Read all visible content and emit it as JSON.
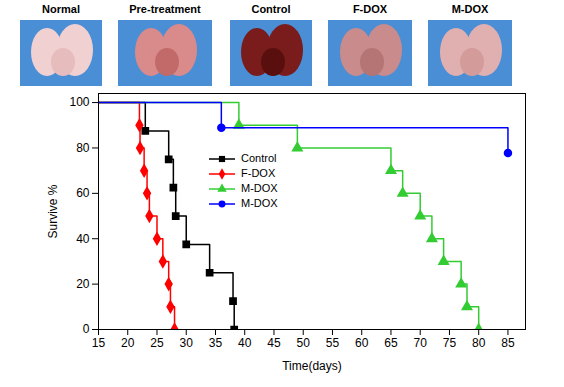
{
  "photos": [
    "Normal",
    "Pre-treatment",
    "Control",
    "F-DOX",
    "M-DOX"
  ],
  "chart_data": {
    "type": "line",
    "x_label": "Time(days)",
    "y_label": "Survive %",
    "xlim": [
      15,
      88
    ],
    "ylim": [
      0,
      104
    ],
    "xticks": [
      15,
      20,
      25,
      30,
      35,
      40,
      45,
      50,
      55,
      60,
      65,
      70,
      75,
      80,
      85
    ],
    "yticks": [
      0,
      20,
      40,
      60,
      80,
      100
    ],
    "legend": "top",
    "series": [
      {
        "name": "Control",
        "color": "#000000",
        "marker": "square",
        "line_style": "step",
        "x": [
          15,
          23,
          27,
          27.8,
          28.2,
          30,
          34,
          38,
          38.2
        ],
        "values": [
          100,
          87.5,
          75,
          62.5,
          50,
          37.5,
          25,
          12.5,
          0
        ]
      },
      {
        "name": "F-DOX",
        "color": "#ff0000",
        "marker": "diamond",
        "line_style": "step",
        "x": [
          15,
          22,
          22.1,
          22.8,
          23.3,
          23.7,
          25,
          26,
          27,
          27.3,
          28
        ],
        "values": [
          100,
          90,
          80,
          70,
          60,
          50,
          40,
          30,
          20,
          10,
          0
        ]
      },
      {
        "name": "M-DOX",
        "color": "#33cc33",
        "marker": "triangle",
        "line_style": "step",
        "x": [
          15,
          39,
          49,
          65,
          67,
          70,
          72,
          74,
          77,
          78,
          80
        ],
        "values": [
          100,
          90,
          80,
          70,
          60,
          50,
          40,
          30,
          20,
          10,
          0
        ]
      },
      {
        "name": "M-DOX",
        "color": "#0000ff",
        "marker": "circle",
        "line_style": "step",
        "x": [
          15,
          36,
          85
        ],
        "values": [
          100,
          88.9,
          77.8
        ]
      }
    ]
  }
}
